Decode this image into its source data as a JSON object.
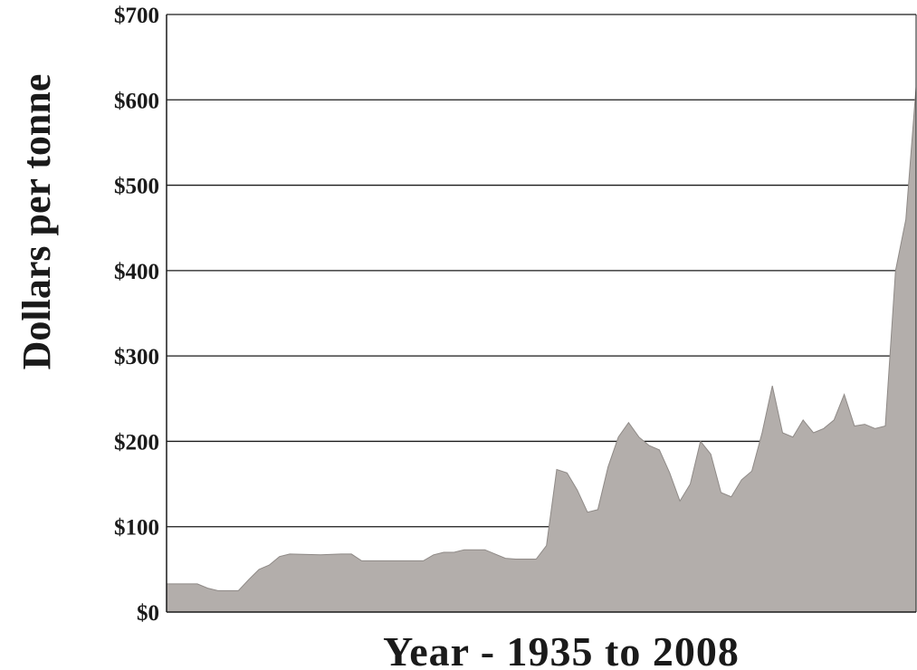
{
  "chart_data": {
    "type": "area",
    "title": "",
    "xlabel": "Year - 1935 to 2008",
    "ylabel": "Dollars per tonne",
    "x_start": 1935,
    "x_end": 2008,
    "ylim": [
      0,
      700
    ],
    "y_ticks": [
      0,
      100,
      200,
      300,
      400,
      500,
      600,
      700
    ],
    "y_tick_labels": [
      "$0",
      "$100",
      "$200",
      "$300",
      "$400",
      "$500",
      "$600",
      "$700"
    ],
    "grid": true,
    "fill_color": "#b3aeab",
    "series": [
      {
        "x": [
          1935,
          1938,
          1939,
          1940,
          1941,
          1942,
          1943,
          1944,
          1945,
          1946,
          1947,
          1950,
          1952,
          1953,
          1954,
          1955,
          1956,
          1957,
          1959,
          1960,
          1961,
          1962,
          1963,
          1964,
          1965,
          1966,
          1967,
          1968,
          1969,
          1970,
          1971,
          1972,
          1973,
          1974,
          1975,
          1976,
          1977,
          1978,
          1979,
          1980,
          1981,
          1982,
          1983,
          1984,
          1985,
          1986,
          1987,
          1988,
          1989,
          1990,
          1991,
          1992,
          1993,
          1994,
          1995,
          1996,
          1997,
          1998,
          1999,
          2000,
          2001,
          2002,
          2003,
          2004,
          2005,
          2006,
          2007,
          2008
        ],
        "values": [
          33,
          33,
          28,
          25,
          25,
          25,
          38,
          50,
          55,
          65,
          68,
          67,
          68,
          68,
          60,
          60,
          60,
          60,
          60,
          60,
          67,
          70,
          70,
          73,
          73,
          73,
          68,
          63,
          62,
          62,
          62,
          78,
          167,
          163,
          143,
          117,
          120,
          170,
          205,
          222,
          205,
          195,
          190,
          163,
          130,
          150,
          200,
          185,
          140,
          135,
          155,
          165,
          210,
          265,
          210,
          205,
          225,
          210,
          215,
          225,
          255,
          218,
          220,
          215,
          218,
          400,
          460,
          615
        ]
      }
    ]
  }
}
